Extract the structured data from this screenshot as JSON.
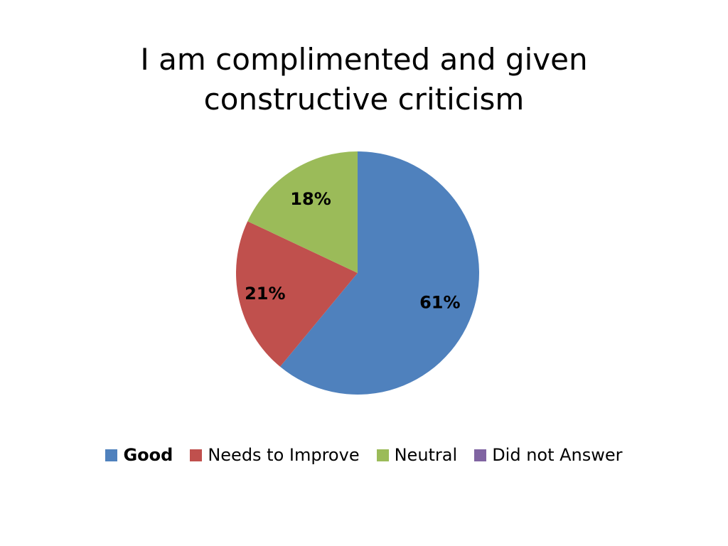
{
  "chart_data": {
    "type": "pie",
    "title_lines": [
      "I am complimented and given",
      "constructive criticism"
    ],
    "categories": [
      "Good",
      "Needs to Improve",
      "Neutral",
      "Did not Answer"
    ],
    "values": [
      61,
      21,
      18,
      0
    ],
    "data_labels": [
      "61%",
      "21%",
      "18%",
      ""
    ],
    "colors": [
      "#4F81BD",
      "#C0504D",
      "#9BBB59",
      "#8064A2"
    ],
    "legend_placement": "bottom",
    "start_angle": "12 o'clock",
    "direction": "clockwise"
  },
  "legend": {
    "items": [
      {
        "label": "Good",
        "color": "#4F81BD",
        "bold": true
      },
      {
        "label": "Needs to Improve",
        "color": "#C0504D",
        "bold": false
      },
      {
        "label": "Neutral",
        "color": "#9BBB59",
        "bold": false
      },
      {
        "label": "Did not Answer",
        "color": "#8064A2",
        "bold": false
      }
    ]
  }
}
